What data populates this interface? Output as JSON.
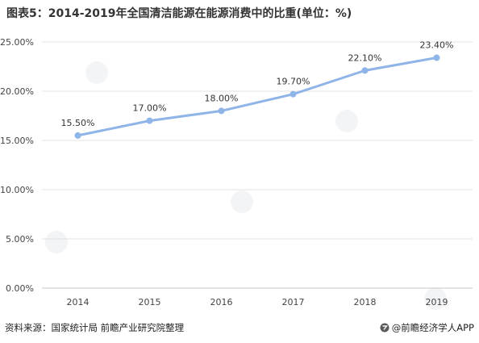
{
  "title": "图表5：2014-2019年全国清洁能源在能源消费中的比重(单位：%)",
  "footer": {
    "source": "资料来源：国家统计局 前瞻产业研究院整理",
    "brand": "@前瞻经济学人APP"
  },
  "colors": {
    "line": "#8fb4e8",
    "grid": "#e3e3e3",
    "axis": "#c8c8c8"
  },
  "chart_data": {
    "type": "line",
    "x": [
      "2014",
      "2015",
      "2016",
      "2017",
      "2018",
      "2019"
    ],
    "values": [
      15.5,
      17.0,
      18.0,
      19.7,
      22.1,
      23.4
    ],
    "data_labels": [
      "15.50%",
      "17.00%",
      "18.00%",
      "19.70%",
      "22.10%",
      "23.40%"
    ],
    "y_ticks": [
      "0.00%",
      "5.00%",
      "10.00%",
      "15.00%",
      "20.00%",
      "25.00%"
    ],
    "ylim": [
      0,
      25
    ],
    "grid": true,
    "legend": "none"
  }
}
